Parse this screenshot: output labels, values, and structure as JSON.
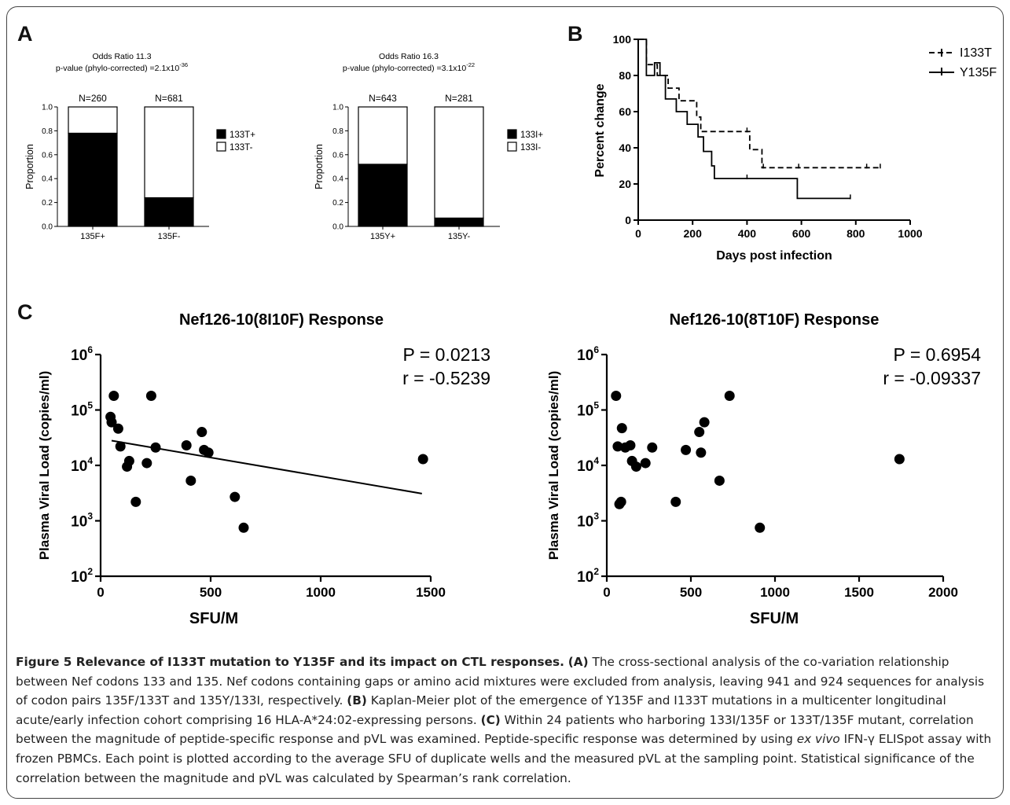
{
  "panels": {
    "a": "A",
    "b": "B",
    "c": "C"
  },
  "chart_data": [
    {
      "type": "bar",
      "id": "A1",
      "title_line1": "Odds Ratio 11.3",
      "title_line2": "p-value (phylo-corrected) =2.1x10",
      "title_exponent": "-36",
      "ylabel": "Proportion",
      "ylim": [
        0,
        1
      ],
      "yticks": [
        "0.0",
        "0.2",
        "0.4",
        "0.6",
        "0.8",
        "1.0"
      ],
      "categories": [
        "135F+",
        "135F-"
      ],
      "n_labels": [
        "N=260",
        "N=681"
      ],
      "series": [
        {
          "name": "133T+",
          "values": [
            0.78,
            0.24
          ],
          "color": "#000000"
        },
        {
          "name": "133T-",
          "values": [
            0.22,
            0.76
          ],
          "color": "#ffffff"
        }
      ]
    },
    {
      "type": "bar",
      "id": "A2",
      "title_line1": "Odds Ratio 16.3",
      "title_line2": "p-value (phylo-corrected) =3.1x10",
      "title_exponent": "-22",
      "ylabel": "Proportion",
      "ylim": [
        0,
        1
      ],
      "yticks": [
        "0.0",
        "0.2",
        "0.4",
        "0.6",
        "0.8",
        "1.0"
      ],
      "categories": [
        "135Y+",
        "135Y-"
      ],
      "n_labels": [
        "N=643",
        "N=281"
      ],
      "series": [
        {
          "name": "133I+",
          "values": [
            0.52,
            0.07
          ],
          "color": "#000000"
        },
        {
          "name": "133I-",
          "values": [
            0.48,
            0.93
          ],
          "color": "#ffffff"
        }
      ]
    },
    {
      "type": "line",
      "id": "B",
      "xlabel": "Days post infection",
      "ylabel": "Percent change",
      "xlim": [
        0,
        1000
      ],
      "ylim": [
        0,
        100
      ],
      "xticks": [
        "0",
        "200",
        "400",
        "600",
        "800",
        "1000"
      ],
      "yticks": [
        "0",
        "20",
        "40",
        "60",
        "80",
        "100"
      ],
      "series": [
        {
          "name": "I133T",
          "style": "dashed",
          "steps": [
            [
              0,
              100
            ],
            [
              30,
              86
            ],
            [
              70,
              80
            ],
            [
              110,
              73
            ],
            [
              150,
              66
            ],
            [
              215,
              57
            ],
            [
              230,
              49
            ],
            [
              410,
              39
            ],
            [
              455,
              29
            ],
            [
              890,
              29
            ]
          ],
          "censored": [
            [
              400,
              49
            ],
            [
              460,
              29
            ],
            [
              590,
              29
            ],
            [
              840,
              29
            ],
            [
              890,
              29
            ]
          ]
        },
        {
          "name": "Y135F",
          "style": "solid",
          "steps": [
            [
              0,
              100
            ],
            [
              30,
              80
            ],
            [
              60,
              87
            ],
            [
              80,
              80
            ],
            [
              100,
              67
            ],
            [
              140,
              60
            ],
            [
              180,
              53
            ],
            [
              220,
              46
            ],
            [
              240,
              38
            ],
            [
              270,
              30
            ],
            [
              280,
              23
            ],
            [
              585,
              12
            ],
            [
              780,
              12
            ]
          ],
          "censored": [
            [
              400,
              23
            ],
            [
              780,
              12
            ]
          ]
        }
      ]
    },
    {
      "type": "scatter",
      "id": "C1",
      "title": "Nef126-10(8I10F) Response",
      "xlabel": "SFU/M",
      "ylabel": "Plasma Viral Load (copies/ml)",
      "xlim": [
        0,
        1500
      ],
      "ylim": [
        100,
        1000000
      ],
      "yscale": "log",
      "xticks": [
        "0",
        "500",
        "1000",
        "1500"
      ],
      "yticks": [
        {
          "base": "10",
          "exp": "2"
        },
        {
          "base": "10",
          "exp": "3"
        },
        {
          "base": "10",
          "exp": "4"
        },
        {
          "base": "10",
          "exp": "5"
        },
        {
          "base": "10",
          "exp": "6"
        }
      ],
      "stat_p": "P = 0.0213",
      "stat_r": "r = -0.5239",
      "points": [
        [
          45,
          75000
        ],
        [
          50,
          60000
        ],
        [
          60,
          180000
        ],
        [
          80,
          46000
        ],
        [
          90,
          22000
        ],
        [
          120,
          9500
        ],
        [
          130,
          12000
        ],
        [
          160,
          2200
        ],
        [
          210,
          11000
        ],
        [
          230,
          180000
        ],
        [
          250,
          21000
        ],
        [
          390,
          23000
        ],
        [
          410,
          5300
        ],
        [
          460,
          40000
        ],
        [
          470,
          19000
        ],
        [
          490,
          17000
        ],
        [
          610,
          2700
        ],
        [
          650,
          750
        ],
        [
          1465,
          13000
        ]
      ],
      "fit": [
        [
          50,
          28000
        ],
        [
          1460,
          3100
        ]
      ]
    },
    {
      "type": "scatter",
      "id": "C2",
      "title": "Nef126-10(8T10F) Response",
      "xlabel": "SFU/M",
      "ylabel": "Plasma Viral Load (copies/ml)",
      "xlim": [
        0,
        2000
      ],
      "ylim": [
        100,
        1000000
      ],
      "yscale": "log",
      "xticks": [
        "0",
        "500",
        "1000",
        "1500",
        "2000"
      ],
      "yticks": [
        {
          "base": "10",
          "exp": "2"
        },
        {
          "base": "10",
          "exp": "3"
        },
        {
          "base": "10",
          "exp": "4"
        },
        {
          "base": "10",
          "exp": "5"
        },
        {
          "base": "10",
          "exp": "6"
        }
      ],
      "stat_p": "P = 0.6954",
      "stat_r": "r = -0.09337",
      "points": [
        [
          55,
          180000
        ],
        [
          65,
          22000
        ],
        [
          75,
          2000
        ],
        [
          85,
          2200
        ],
        [
          90,
          47000
        ],
        [
          110,
          21000
        ],
        [
          140,
          23000
        ],
        [
          150,
          12000
        ],
        [
          175,
          9500
        ],
        [
          230,
          11000
        ],
        [
          270,
          21000
        ],
        [
          410,
          2200
        ],
        [
          470,
          19000
        ],
        [
          550,
          40000
        ],
        [
          560,
          17000
        ],
        [
          580,
          60000
        ],
        [
          670,
          5300
        ],
        [
          730,
          180000
        ],
        [
          910,
          750
        ],
        [
          1740,
          13000
        ]
      ]
    }
  ],
  "caption": {
    "figure_label": "Figure 5",
    "title": "Relevance of I133T mutation to Y135F and its impact on CTL responses.",
    "a_label": "(A)",
    "a_text": "The cross-sectional analysis of the co-variation relationship between Nef codons 133 and 135. Nef codons containing gaps or amino acid mixtures were excluded from analysis, leaving 941 and 924 sequences for analysis of codon pairs 135F/133T and 135Y/133I, respectively.",
    "b_label": "(B)",
    "b_text": "Kaplan-Meier plot of the emergence of Y135F and I133T mutations in a multicenter longitudinal acute/early infection cohort comprising 16 HLA-A*24:02-expressing persons.",
    "c_label": "(C)",
    "c_text_1": "Within 24 patients who harboring 133I/135F or 133T/135F mutant, correlation between the magnitude of peptide-specific response and pVL was examined. Peptide-specific response was determined by using",
    "c_italic": "ex vivo",
    "c_text_2": "IFN-γ ELISpot assay with frozen PBMCs. Each point is plotted according to the average SFU of duplicate wells and the measured pVL at the sampling point. Statistical significance of the correlation between the magnitude and pVL was calculated by Spearman’s rank correlation."
  }
}
